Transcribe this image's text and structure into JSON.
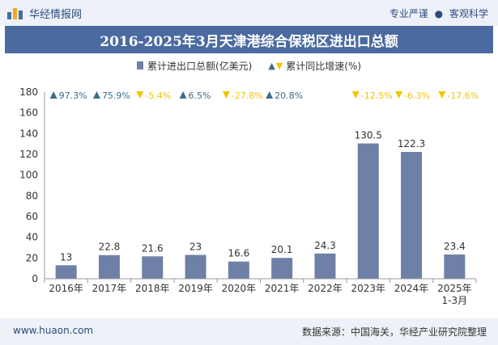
{
  "header": {
    "brand": "华经情报网",
    "tagline_left": "专业严谨",
    "tagline_right": "客观科学"
  },
  "title": "2016-2025年3月天津港综合保税区进出口总额",
  "legend": {
    "bar": "累计进出口总额(亿美元)",
    "growth": "累计同比增速(%)"
  },
  "footer": {
    "site": "www.huaon.com",
    "source": "数据来源：中国海关，华经产业研究院整理"
  },
  "colors": {
    "bar": "#6f80a8",
    "up": "#3d6c8a",
    "down": "#f5c300",
    "title_bg": "#4a6aa0"
  },
  "chart_data": {
    "type": "bar",
    "categories": [
      "2016年",
      "2017年",
      "2018年",
      "2019年",
      "2020年",
      "2021年",
      "2022年",
      "2023年",
      "2024年",
      "2025年\n1-3月"
    ],
    "values": [
      13,
      22.8,
      21.6,
      23,
      16.6,
      20.1,
      24.3,
      130.5,
      122.3,
      23.4
    ],
    "value_labels": [
      "13",
      "22.8",
      "21.6",
      "23",
      "16.6",
      "20.1",
      "24.3",
      "130.5",
      "122.3",
      "23.4"
    ],
    "growth": [
      {
        "text": "97.3%",
        "dir": "up"
      },
      {
        "text": "75.9%",
        "dir": "up"
      },
      {
        "text": "-5.4%",
        "dir": "down"
      },
      {
        "text": "6.5%",
        "dir": "up"
      },
      {
        "text": "-27.8%",
        "dir": "down"
      },
      {
        "text": "20.8%",
        "dir": "up"
      },
      null,
      {
        "text": "-12.5%",
        "dir": "down"
      },
      {
        "text": "-6.3%",
        "dir": "down"
      },
      {
        "text": "-17.6%",
        "dir": "down"
      }
    ],
    "ylim": [
      0,
      180
    ],
    "yticks": [
      0,
      20,
      40,
      60,
      80,
      100,
      120,
      140,
      160,
      180
    ]
  }
}
